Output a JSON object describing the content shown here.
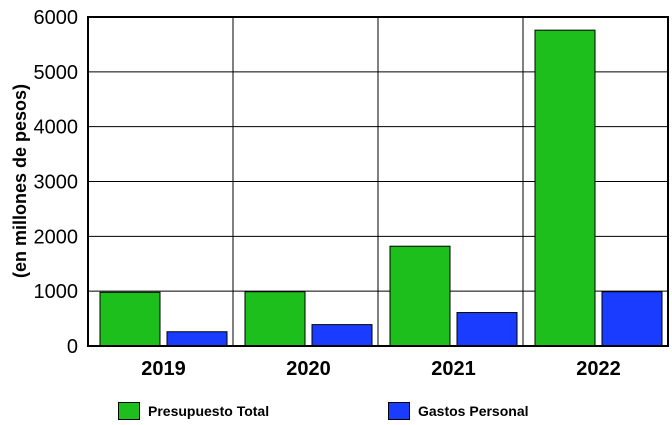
{
  "chart_data": {
    "type": "bar",
    "title": "",
    "xlabel": "",
    "ylabel": "(en millones de pesos)",
    "ylim": [
      0,
      6000
    ],
    "yticks": [
      0,
      1000,
      2000,
      3000,
      4000,
      5000,
      6000
    ],
    "categories": [
      "2019",
      "2020",
      "2021",
      "2022"
    ],
    "grid": true,
    "legend_position": "bottom",
    "series": [
      {
        "name": "Presupuesto Total",
        "color": "#1dbf1d",
        "values": [
          980,
          990,
          1820,
          5760
        ]
      },
      {
        "name": "Gastos Personal",
        "color": "#1a3cff",
        "values": [
          260,
          390,
          610,
          990
        ]
      }
    ]
  }
}
